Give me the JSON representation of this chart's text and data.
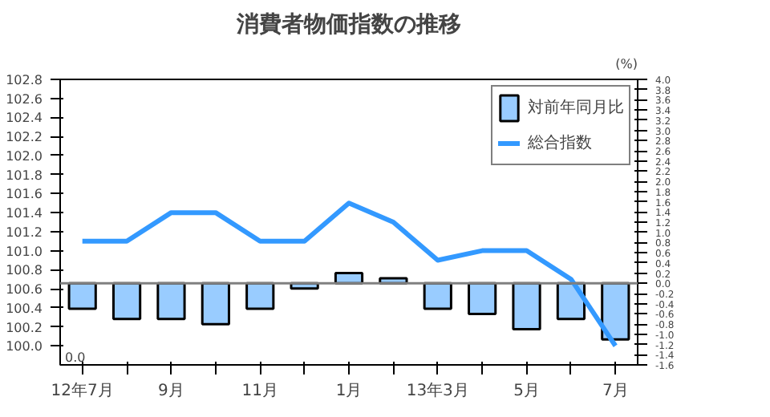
{
  "chart_data": {
    "type": "line",
    "title": "消費者物価指数の推移",
    "y2label": "(%)",
    "categories": [
      "12年7月",
      null,
      "9月",
      null,
      "11月",
      null,
      "1月",
      null,
      "13年3月",
      null,
      "5月",
      null,
      "7月"
    ],
    "series": [
      {
        "name": "対前年同月比",
        "type": "bar",
        "axis": "y2",
        "color": "#99ccff",
        "values": [
          -0.5,
          -0.7,
          -0.7,
          -0.8,
          -0.5,
          -0.1,
          0.2,
          0.1,
          -0.5,
          -0.6,
          -0.9,
          -0.7,
          -1.1
        ]
      },
      {
        "name": "総合指数",
        "color": "#3399ff",
        "values": [
          101.1,
          101.1,
          101.4,
          101.4,
          101.1,
          101.1,
          101.5,
          101.3,
          100.9,
          101.0,
          101.0,
          100.7,
          100.0
        ]
      }
    ],
    "ylim": [
      99.8,
      102.8
    ],
    "annotations": [
      "0.0"
    ],
    "yticks": [
      {
        "value": 100,
        "label": "100.0"
      },
      100.2,
      100.4,
      100.6,
      100.8,
      {
        "value": 101,
        "label": "101.0"
      },
      101.2,
      101.4,
      101.6,
      101.8,
      {
        "value": 102,
        "label": "102.0"
      },
      102.2,
      102.4,
      102.6,
      102.8
    ],
    "y2lim": [
      -1.6,
      4.0
    ],
    "y2ticks": [
      -1.6,
      -1.4,
      -1.2,
      {
        "value": -1,
        "label": "-1.0"
      },
      -0.8,
      -0.6,
      -0.4,
      -0.2,
      {
        "value": 0,
        "label": "0.0"
      },
      0.2,
      0.4,
      0.6,
      0.8,
      {
        "value": 1,
        "label": "1.0"
      },
      1.2,
      1.4,
      1.6,
      1.8,
      {
        "value": 2,
        "label": "2.0"
      },
      2.2,
      2.4,
      2.6,
      2.8,
      {
        "value": 3,
        "label": "3.0"
      },
      3.2,
      3.4,
      3.6,
      3.8,
      {
        "value": 4,
        "label": "4.0"
      }
    ],
    "ref_lines": [
      {
        "axis": "y2",
        "value": 0,
        "color": "#808080"
      }
    ],
    "grid": false,
    "legend": "top right",
    "marker": "none",
    "line_style": "solid"
  }
}
